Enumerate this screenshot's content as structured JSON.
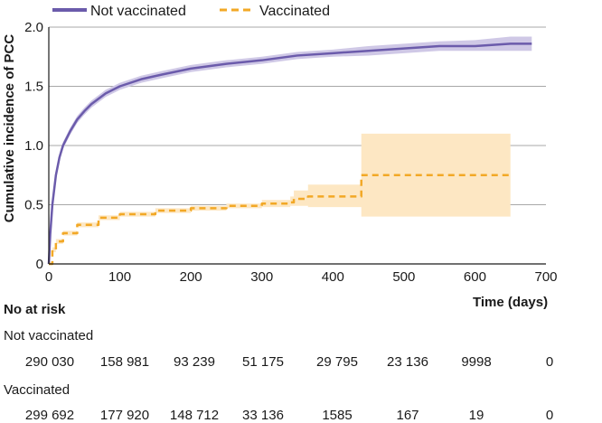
{
  "chart_data": {
    "type": "line",
    "xlabel": "Time (days)",
    "ylabel": "Cumulative incidence of PCC",
    "xlim": [
      0,
      700
    ],
    "ylim": [
      0,
      2.0
    ],
    "x_ticks": [
      0,
      100,
      200,
      300,
      400,
      500,
      600,
      700
    ],
    "y_ticks": [
      0,
      0.5,
      1.0,
      1.5,
      2.0
    ],
    "y_tick_labels": [
      "0",
      "0.5",
      "1.0",
      "1.5",
      "2.0"
    ],
    "x_tick_labels": [
      "0",
      "100",
      "200",
      "300",
      "400",
      "500",
      "600",
      "700"
    ],
    "grid": "horizontal",
    "legend_position": "top",
    "series": [
      {
        "name": "Not vaccinated",
        "color": "#6b5bab",
        "band_color": "#cfc8e6",
        "style": "solid",
        "x": [
          0,
          2,
          5,
          10,
          15,
          20,
          30,
          40,
          50,
          60,
          80,
          100,
          130,
          160,
          200,
          250,
          300,
          350,
          400,
          450,
          500,
          550,
          600,
          650,
          680
        ],
        "y": [
          0,
          0.25,
          0.5,
          0.75,
          0.9,
          1.0,
          1.12,
          1.22,
          1.29,
          1.35,
          1.44,
          1.5,
          1.56,
          1.6,
          1.65,
          1.69,
          1.72,
          1.76,
          1.78,
          1.8,
          1.82,
          1.84,
          1.84,
          1.86,
          1.86
        ],
        "lower": [
          0,
          0.22,
          0.47,
          0.72,
          0.87,
          0.97,
          1.09,
          1.19,
          1.26,
          1.32,
          1.41,
          1.47,
          1.53,
          1.57,
          1.62,
          1.66,
          1.69,
          1.73,
          1.75,
          1.76,
          1.78,
          1.8,
          1.8,
          1.8,
          1.8
        ],
        "upper": [
          0,
          0.28,
          0.53,
          0.78,
          0.93,
          1.03,
          1.15,
          1.25,
          1.32,
          1.38,
          1.47,
          1.53,
          1.59,
          1.63,
          1.68,
          1.72,
          1.75,
          1.79,
          1.81,
          1.84,
          1.86,
          1.88,
          1.89,
          1.92,
          1.92
        ]
      },
      {
        "name": "Vaccinated",
        "color": "#f2a826",
        "band_color": "#fde7c3",
        "style": "dashed",
        "x": [
          0,
          5,
          10,
          20,
          40,
          70,
          100,
          150,
          200,
          250,
          300,
          340,
          345,
          360,
          365,
          437,
          440,
          650
        ],
        "y": [
          0,
          0.12,
          0.19,
          0.26,
          0.33,
          0.39,
          0.42,
          0.45,
          0.47,
          0.49,
          0.51,
          0.52,
          0.55,
          0.55,
          0.57,
          0.57,
          0.75,
          0.75
        ],
        "lower": [
          0,
          0.1,
          0.17,
          0.24,
          0.31,
          0.37,
          0.4,
          0.43,
          0.45,
          0.47,
          0.48,
          0.49,
          0.49,
          0.49,
          0.48,
          0.48,
          0.4,
          0.4
        ],
        "upper": [
          0,
          0.14,
          0.21,
          0.28,
          0.35,
          0.41,
          0.44,
          0.47,
          0.49,
          0.51,
          0.54,
          0.57,
          0.62,
          0.62,
          0.67,
          0.67,
          1.1,
          1.1
        ]
      }
    ],
    "at_risk": {
      "title": "No at risk",
      "times": [
        0,
        100,
        200,
        300,
        400,
        500,
        600,
        700
      ],
      "rows": [
        {
          "label": "Not vaccinated",
          "values": [
            "290 030",
            "158 981",
            "93 239",
            "51 175",
            "29 795",
            "23 136",
            "9998",
            "0"
          ]
        },
        {
          "label": "Vaccinated",
          "values": [
            "299 692",
            "177 920",
            "148 712",
            "33 136",
            "1585",
            "167",
            "19",
            "0"
          ]
        }
      ]
    }
  }
}
